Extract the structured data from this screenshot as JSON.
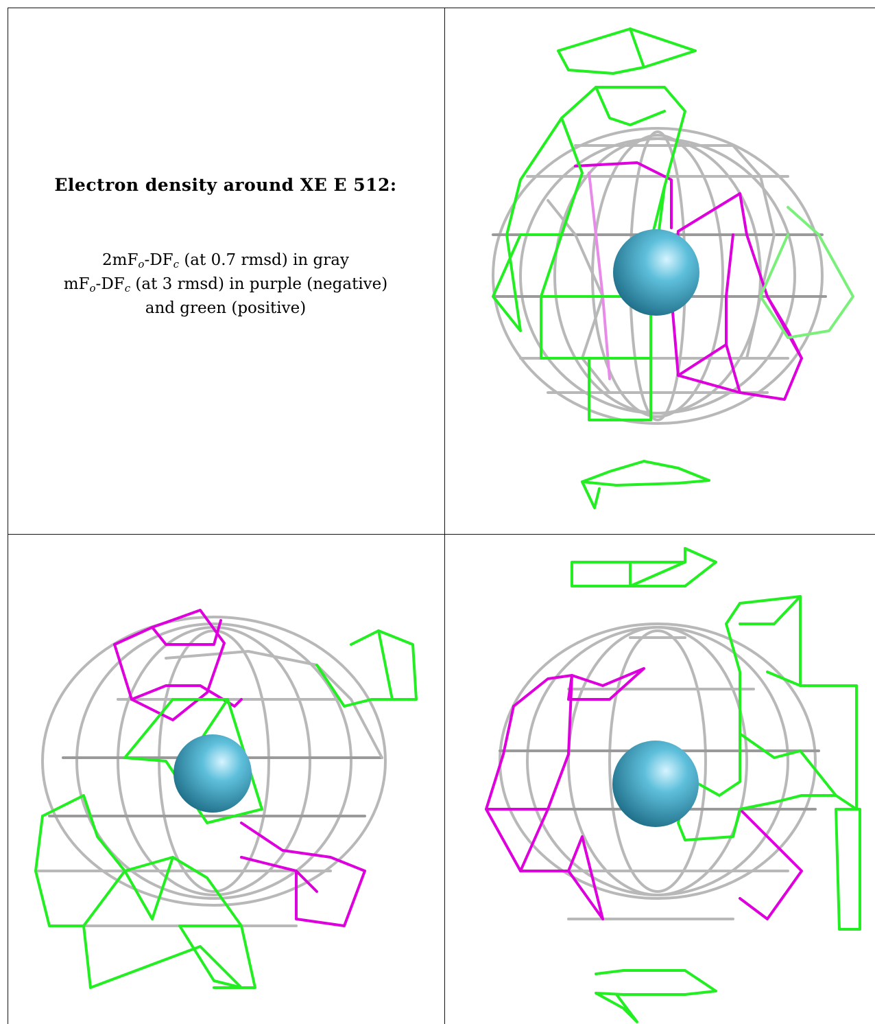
{
  "panel_text": {
    "title": "Electron density around XE E 512:",
    "legend_lines": [
      {
        "pre": "2mF",
        "sub1": "o",
        "mid": "-DF",
        "sub2": "c",
        "post": " (at 0.7 rmsd) in gray"
      },
      {
        "pre": "mF",
        "sub1": "o",
        "mid": "-DF",
        "sub2": "c",
        "post": " (at 3 rmsd) in purple (negative)"
      },
      {
        "pre": "",
        "sub1": "",
        "mid": "",
        "sub2": "",
        "post": "and green (positive)"
      }
    ]
  },
  "colors": {
    "gray_mesh": "#b4b4b4",
    "gray_dark": "#8a8a8a",
    "negative_mesh": "#dd00dd",
    "positive_mesh": "#22ee22",
    "atom": "#3aa0c0",
    "grid_line": "#111111"
  },
  "views": [
    {
      "id": "top-right",
      "atom": "XE"
    },
    {
      "id": "bottom-left",
      "atom": "XE"
    },
    {
      "id": "bottom-right",
      "atom": "XE"
    }
  ]
}
